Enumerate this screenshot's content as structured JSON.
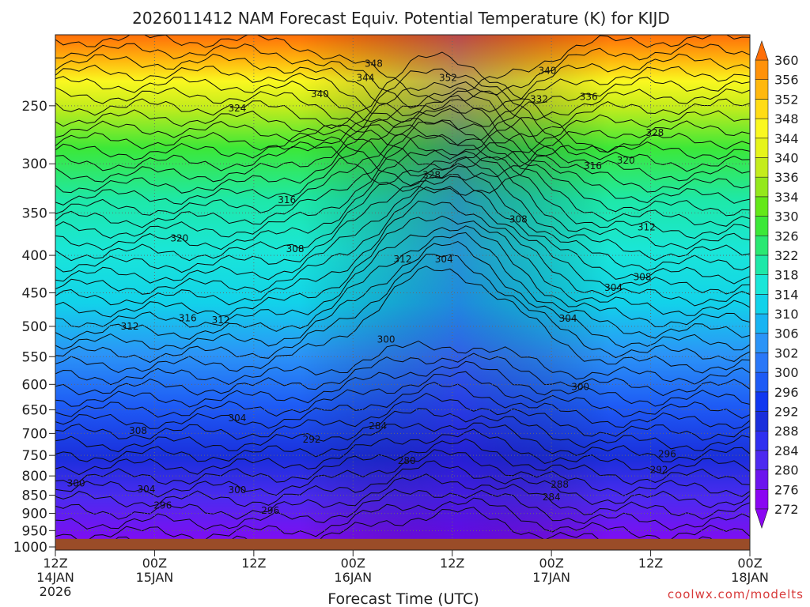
{
  "chart_data": {
    "type": "heatmap",
    "title": "2026011412 NAM Forecast Equiv. Potential Temperature (K) for KIJD",
    "xlabel": "Forecast Time (UTC)",
    "ylabel": "",
    "credit": "coolwx.com/modelts",
    "y_axis": {
      "ticks": [
        250,
        300,
        350,
        400,
        450,
        500,
        550,
        600,
        650,
        700,
        750,
        800,
        850,
        900,
        950,
        1000
      ],
      "range": [
        200,
        1010
      ],
      "scale": "log",
      "grid": true
    },
    "x_axis": {
      "range_hours": [
        0,
        84
      ],
      "grid": true,
      "ticks": [
        {
          "hour": 0,
          "l1": "12Z",
          "l2": "14JAN",
          "l3": "2026"
        },
        {
          "hour": 12,
          "l1": "00Z",
          "l2": "15JAN",
          "l3": ""
        },
        {
          "hour": 24,
          "l1": "12Z",
          "l2": "",
          "l3": ""
        },
        {
          "hour": 36,
          "l1": "00Z",
          "l2": "16JAN",
          "l3": ""
        },
        {
          "hour": 48,
          "l1": "12Z",
          "l2": "",
          "l3": ""
        },
        {
          "hour": 60,
          "l1": "00Z",
          "l2": "17JAN",
          "l3": ""
        },
        {
          "hour": 72,
          "l1": "12Z",
          "l2": "",
          "l3": ""
        },
        {
          "hour": 84,
          "l1": "00Z",
          "l2": "18JAN",
          "l3": ""
        }
      ]
    },
    "colorbar": {
      "levels": [
        272,
        276,
        280,
        284,
        288,
        292,
        296,
        300,
        302,
        306,
        310,
        314,
        318,
        322,
        326,
        330,
        334,
        336,
        340,
        344,
        348,
        352,
        356,
        360
      ],
      "colors": [
        "#8a06f2",
        "#6c14ee",
        "#4d2af0",
        "#2f2ff0",
        "#1a2fdc",
        "#1038f0",
        "#1e5bf5",
        "#2a78f8",
        "#2b94f7",
        "#18b4f2",
        "#12d2ea",
        "#1ae6d8",
        "#1ee8a8",
        "#2ae872",
        "#3ce838",
        "#64e818",
        "#94e81c",
        "#c4ec1c",
        "#e6f41a",
        "#faf820",
        "#ffdc16",
        "#ffb80e",
        "#ff920a",
        "#ff6e08"
      ]
    },
    "surface_pressure": 975,
    "contour_labels": [
      {
        "v": 348,
        "h": 38.5,
        "p": 219
      },
      {
        "v": 344,
        "h": 37.5,
        "p": 229
      },
      {
        "v": 352,
        "h": 47.5,
        "p": 229
      },
      {
        "v": 340,
        "h": 59.5,
        "p": 224
      },
      {
        "v": 340,
        "h": 32.0,
        "p": 241
      },
      {
        "v": 332,
        "h": 58.5,
        "p": 245
      },
      {
        "v": 336,
        "h": 64.5,
        "p": 243
      },
      {
        "v": 324,
        "h": 22.0,
        "p": 252
      },
      {
        "v": 328,
        "h": 72.5,
        "p": 272
      },
      {
        "v": 320,
        "h": 69.0,
        "p": 297
      },
      {
        "v": 316,
        "h": 65.0,
        "p": 302
      },
      {
        "v": 328,
        "h": 45.5,
        "p": 311
      },
      {
        "v": 316,
        "h": 28.0,
        "p": 336
      },
      {
        "v": 308,
        "h": 56.0,
        "p": 357
      },
      {
        "v": 312,
        "h": 71.5,
        "p": 366
      },
      {
        "v": 320,
        "h": 15.0,
        "p": 379
      },
      {
        "v": 308,
        "h": 29.0,
        "p": 392
      },
      {
        "v": 312,
        "h": 42.0,
        "p": 405
      },
      {
        "v": 304,
        "h": 47.0,
        "p": 405
      },
      {
        "v": 308,
        "h": 71.0,
        "p": 428
      },
      {
        "v": 304,
        "h": 67.5,
        "p": 443
      },
      {
        "v": 316,
        "h": 16.0,
        "p": 487
      },
      {
        "v": 312,
        "h": 20.0,
        "p": 490
      },
      {
        "v": 304,
        "h": 62.0,
        "p": 488
      },
      {
        "v": 312,
        "h": 9.0,
        "p": 500
      },
      {
        "v": 300,
        "h": 40.0,
        "p": 521
      },
      {
        "v": 300,
        "h": 63.5,
        "p": 605
      },
      {
        "v": 304,
        "h": 22.0,
        "p": 667
      },
      {
        "v": 284,
        "h": 39.0,
        "p": 684
      },
      {
        "v": 308,
        "h": 10.0,
        "p": 694
      },
      {
        "v": 292,
        "h": 31.0,
        "p": 713
      },
      {
        "v": 296,
        "h": 74.0,
        "p": 747
      },
      {
        "v": 280,
        "h": 42.5,
        "p": 763
      },
      {
        "v": 292,
        "h": 73.0,
        "p": 785
      },
      {
        "v": 300,
        "h": 2.5,
        "p": 819
      },
      {
        "v": 304,
        "h": 11.0,
        "p": 834
      },
      {
        "v": 300,
        "h": 22.0,
        "p": 836
      },
      {
        "v": 288,
        "h": 61.0,
        "p": 822
      },
      {
        "v": 284,
        "h": 60.0,
        "p": 855
      },
      {
        "v": 296,
        "h": 13.0,
        "p": 878
      },
      {
        "v": 296,
        "h": 26.0,
        "p": 892
      }
    ]
  }
}
